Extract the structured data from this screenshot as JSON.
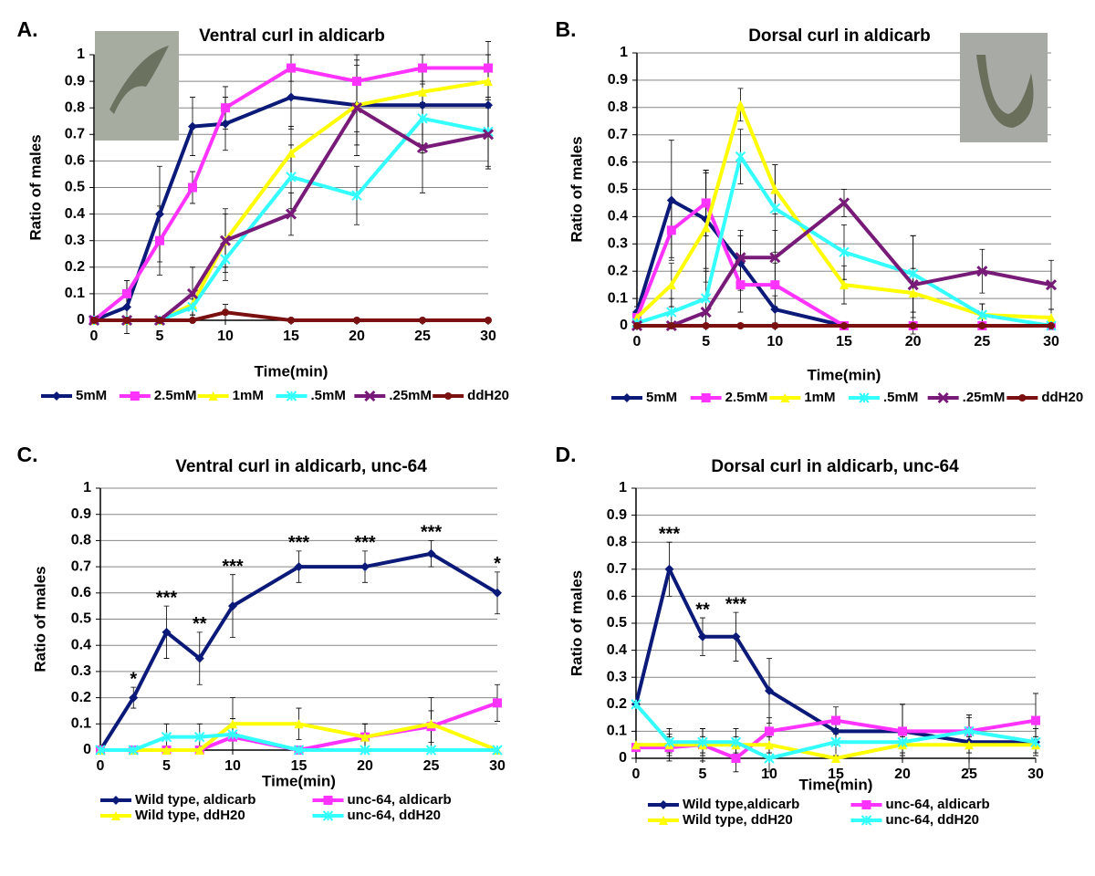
{
  "chart_data": [
    {
      "type": "line",
      "panel": "A.",
      "title": "Ventral curl in aldicarb",
      "x_label": "Time(min)",
      "y_label": "Ratio of males",
      "x": [
        0,
        2.5,
        5,
        7.5,
        10,
        15,
        20,
        25,
        30
      ],
      "xlim": [
        0,
        30
      ],
      "xticks": [
        0,
        5,
        10,
        15,
        20,
        25,
        30
      ],
      "ylim": [
        0,
        1
      ],
      "yticks": [
        0,
        0.1,
        0.2,
        0.3,
        0.4,
        0.5,
        0.6,
        0.7,
        0.8,
        0.9,
        1
      ],
      "grid": true,
      "legend": "bottom",
      "series": [
        {
          "name": "5mM",
          "color": "#0b1a78",
          "marker": "diamond",
          "values": [
            0,
            0.05,
            0.4,
            0.73,
            0.74,
            0.84,
            0.81,
            0.81,
            0.81
          ],
          "errors": [
            0,
            0.1,
            0.18,
            0.11,
            0.1,
            0.12,
            0.15,
            0.15,
            0.24
          ]
        },
        {
          "name": "2.5mM",
          "color": "#ff33ff",
          "marker": "square",
          "values": [
            0,
            0.1,
            0.3,
            0.5,
            0.8,
            0.95,
            0.9,
            0.95,
            0.95
          ],
          "errors": [
            0,
            0.05,
            0.13,
            0.06,
            0.08,
            0.05,
            0.1,
            0.05,
            0.05
          ]
        },
        {
          "name": "1mM",
          "color": "#ffff00",
          "marker": "triangle",
          "values": [
            0,
            0,
            0,
            0.06,
            0.3,
            0.63,
            0.81,
            0.86,
            0.9
          ],
          "errors": [
            0,
            0,
            0,
            0.04,
            0.1,
            0.1,
            0.1,
            0.1,
            0.1
          ]
        },
        {
          "name": ".5mM",
          "color": "#33ffff",
          "marker": "asterisk",
          "values": [
            0,
            0,
            0,
            0.05,
            0.23,
            0.54,
            0.47,
            0.76,
            0.71
          ],
          "errors": [
            0,
            0,
            0,
            0.03,
            0.08,
            0.12,
            0.11,
            0.13,
            0.13
          ]
        },
        {
          "name": ".25mM",
          "color": "#781a78",
          "marker": "cross",
          "values": [
            0,
            0,
            0,
            0.1,
            0.3,
            0.4,
            0.8,
            0.65,
            0.7
          ],
          "errors": [
            0,
            0,
            0,
            0.1,
            0.12,
            0.08,
            0.18,
            0.17,
            0.13
          ]
        },
        {
          "name": "ddH20",
          "color": "#7a1010",
          "marker": "circle",
          "values": [
            0,
            0,
            0,
            0,
            0.03,
            0,
            0,
            0,
            0
          ],
          "errors": [
            0,
            0,
            0,
            0,
            0.03,
            0,
            0,
            0,
            0
          ]
        }
      ]
    },
    {
      "type": "line",
      "panel": "B.",
      "title": "Dorsal curl in aldicarb",
      "x_label": "Time(min)",
      "y_label": "Ratio of males",
      "x": [
        0,
        2.5,
        5,
        7.5,
        10,
        15,
        20,
        25,
        30
      ],
      "xlim": [
        0,
        30
      ],
      "xticks": [
        0,
        5,
        10,
        15,
        20,
        25,
        30
      ],
      "ylim": [
        0,
        1
      ],
      "yticks": [
        0,
        0.1,
        0.2,
        0.3,
        0.4,
        0.5,
        0.6,
        0.7,
        0.8,
        0.9,
        1
      ],
      "grid": true,
      "legend": "bottom",
      "series": [
        {
          "name": "5mM",
          "color": "#0b1a78",
          "marker": "diamond",
          "values": [
            0.05,
            0.46,
            0.39,
            0.23,
            0.06,
            0,
            0,
            0,
            0
          ],
          "errors": [
            0.02,
            0.22,
            0.18,
            0.1,
            0.05,
            0,
            0,
            0,
            0
          ]
        },
        {
          "name": "2.5mM",
          "color": "#ff33ff",
          "marker": "square",
          "values": [
            0.03,
            0.35,
            0.45,
            0.15,
            0.15,
            0,
            0,
            0,
            0
          ],
          "errors": [
            0.02,
            0.1,
            0.12,
            0.1,
            0.08,
            0,
            0,
            0,
            0
          ]
        },
        {
          "name": "1mM",
          "color": "#ffff00",
          "marker": "triangle",
          "values": [
            0.03,
            0.15,
            0.36,
            0.81,
            0.5,
            0.15,
            0.12,
            0.04,
            0.03
          ],
          "errors": [
            0.02,
            0.08,
            0.2,
            0.06,
            0.09,
            0.07,
            0.09,
            0.04,
            0.03
          ]
        },
        {
          "name": ".5mM",
          "color": "#33ffff",
          "marker": "asterisk",
          "values": [
            0.01,
            0.05,
            0.1,
            0.62,
            0.43,
            0.27,
            0.19,
            0.04,
            0
          ],
          "errors": [
            0.01,
            0.05,
            0.1,
            0.1,
            0.16,
            0.1,
            0.14,
            0.04,
            0
          ]
        },
        {
          "name": ".25mM",
          "color": "#781a78",
          "marker": "cross",
          "values": [
            0,
            0,
            0.05,
            0.25,
            0.25,
            0.45,
            0.15,
            0.2,
            0.15
          ],
          "errors": [
            0,
            0,
            0.05,
            0.1,
            0.1,
            0.05,
            0.18,
            0.08,
            0.09
          ]
        },
        {
          "name": "ddH20",
          "color": "#7a1010",
          "marker": "circle",
          "values": [
            0,
            0,
            0,
            0,
            0,
            0,
            0,
            0,
            0
          ],
          "errors": [
            0,
            0,
            0,
            0,
            0,
            0,
            0,
            0,
            0
          ]
        }
      ]
    },
    {
      "type": "line",
      "panel": "C.",
      "title": "Ventral curl in aldicarb, unc-64",
      "x_label": "Time(min)",
      "y_label": "Ratio of males",
      "x": [
        0,
        2.5,
        5,
        7.5,
        10,
        15,
        20,
        25,
        30
      ],
      "xlim": [
        0,
        30
      ],
      "xticks": [
        0,
        5,
        10,
        15,
        20,
        25,
        30
      ],
      "ylim": [
        0,
        1
      ],
      "yticks": [
        0,
        0.1,
        0.2,
        0.3,
        0.4,
        0.5,
        0.6,
        0.7,
        0.8,
        0.9,
        1
      ],
      "grid": true,
      "legend": "bottom",
      "series": [
        {
          "name": "Wild type, aldicarb",
          "color": "#0b1a78",
          "marker": "diamond",
          "values": [
            0,
            0.2,
            0.45,
            0.35,
            0.55,
            0.7,
            0.7,
            0.75,
            0.6
          ],
          "errors": [
            0,
            0.04,
            0.1,
            0.1,
            0.12,
            0.06,
            0.06,
            0.05,
            0.08
          ],
          "annotations": [
            null,
            "*",
            "***",
            "**",
            "***",
            "***",
            "***",
            "***",
            "*"
          ]
        },
        {
          "name": "unc-64, aldicarb",
          "color": "#ff33ff",
          "marker": "square",
          "values": [
            0,
            0,
            0,
            0,
            0.05,
            0,
            0.05,
            0.09,
            0.18
          ],
          "errors": [
            0,
            0,
            0,
            0,
            0.05,
            0,
            0.05,
            0.06,
            0.07
          ]
        },
        {
          "name": "Wild type, ddH20",
          "color": "#ffff00",
          "marker": "triangle",
          "values": [
            0,
            0,
            0,
            0,
            0.1,
            0.1,
            0.05,
            0.1,
            0
          ],
          "errors": [
            0,
            0,
            0,
            0,
            0.1,
            0.06,
            0.05,
            0.1,
            0
          ]
        },
        {
          "name": "unc-64, ddH20",
          "color": "#33ffff",
          "marker": "asterisk",
          "values": [
            0,
            0,
            0.05,
            0.05,
            0.06,
            0,
            0,
            0,
            0
          ],
          "errors": [
            0,
            0,
            0.05,
            0.05,
            0.06,
            0,
            0,
            0,
            0
          ]
        }
      ]
    },
    {
      "type": "line",
      "panel": "D.",
      "title": "Dorsal curl in aldicarb, unc-64",
      "x_label": "Time(min)",
      "y_label": "Ratio of males",
      "x": [
        0,
        2.5,
        5,
        7.5,
        10,
        15,
        20,
        25,
        30
      ],
      "xlim": [
        0,
        30
      ],
      "xticks": [
        0,
        5,
        10,
        15,
        20,
        25,
        30
      ],
      "ylim": [
        0,
        1
      ],
      "yticks": [
        0,
        0.1,
        0.2,
        0.3,
        0.4,
        0.5,
        0.6,
        0.7,
        0.8,
        0.9,
        1
      ],
      "grid": true,
      "legend": "bottom",
      "series": [
        {
          "name": "Wild type,aldicarb",
          "color": "#0b1a78",
          "marker": "diamond",
          "values": [
            0.2,
            0.7,
            0.45,
            0.45,
            0.25,
            0.1,
            0.1,
            0.06,
            0.06
          ],
          "errors": [
            0,
            0.1,
            0.07,
            0.09,
            0.12,
            0.05,
            0.1,
            0.1,
            0
          ],
          "annotations": [
            null,
            "***",
            "**",
            "***",
            null,
            null,
            null,
            null,
            null
          ]
        },
        {
          "name": "unc-64, aldicarb",
          "color": "#ff33ff",
          "marker": "square",
          "values": [
            0.04,
            0.04,
            0.05,
            0,
            0.1,
            0.14,
            0.1,
            0.1,
            0.14
          ],
          "errors": [
            0,
            0.05,
            0.06,
            0.05,
            0.05,
            0.05,
            0.1,
            0.06,
            0.1
          ]
        },
        {
          "name": "Wild type, ddH20",
          "color": "#ffff00",
          "marker": "triangle",
          "values": [
            0.05,
            0.05,
            0.05,
            0.05,
            0.05,
            0,
            0.05,
            0.05,
            0.05
          ],
          "errors": [
            0,
            0.03,
            0.03,
            0.03,
            0.03,
            0,
            0.03,
            0.03,
            0.03
          ]
        },
        {
          "name": "unc-64, ddH20",
          "color": "#33ffff",
          "marker": "asterisk",
          "values": [
            0.2,
            0.06,
            0.06,
            0.06,
            0,
            0.06,
            0.06,
            0.1,
            0.06
          ],
          "errors": [
            0,
            0.05,
            0.05,
            0.05,
            0.05,
            0.05,
            0.05,
            0.05,
            0.05
          ]
        }
      ]
    }
  ]
}
